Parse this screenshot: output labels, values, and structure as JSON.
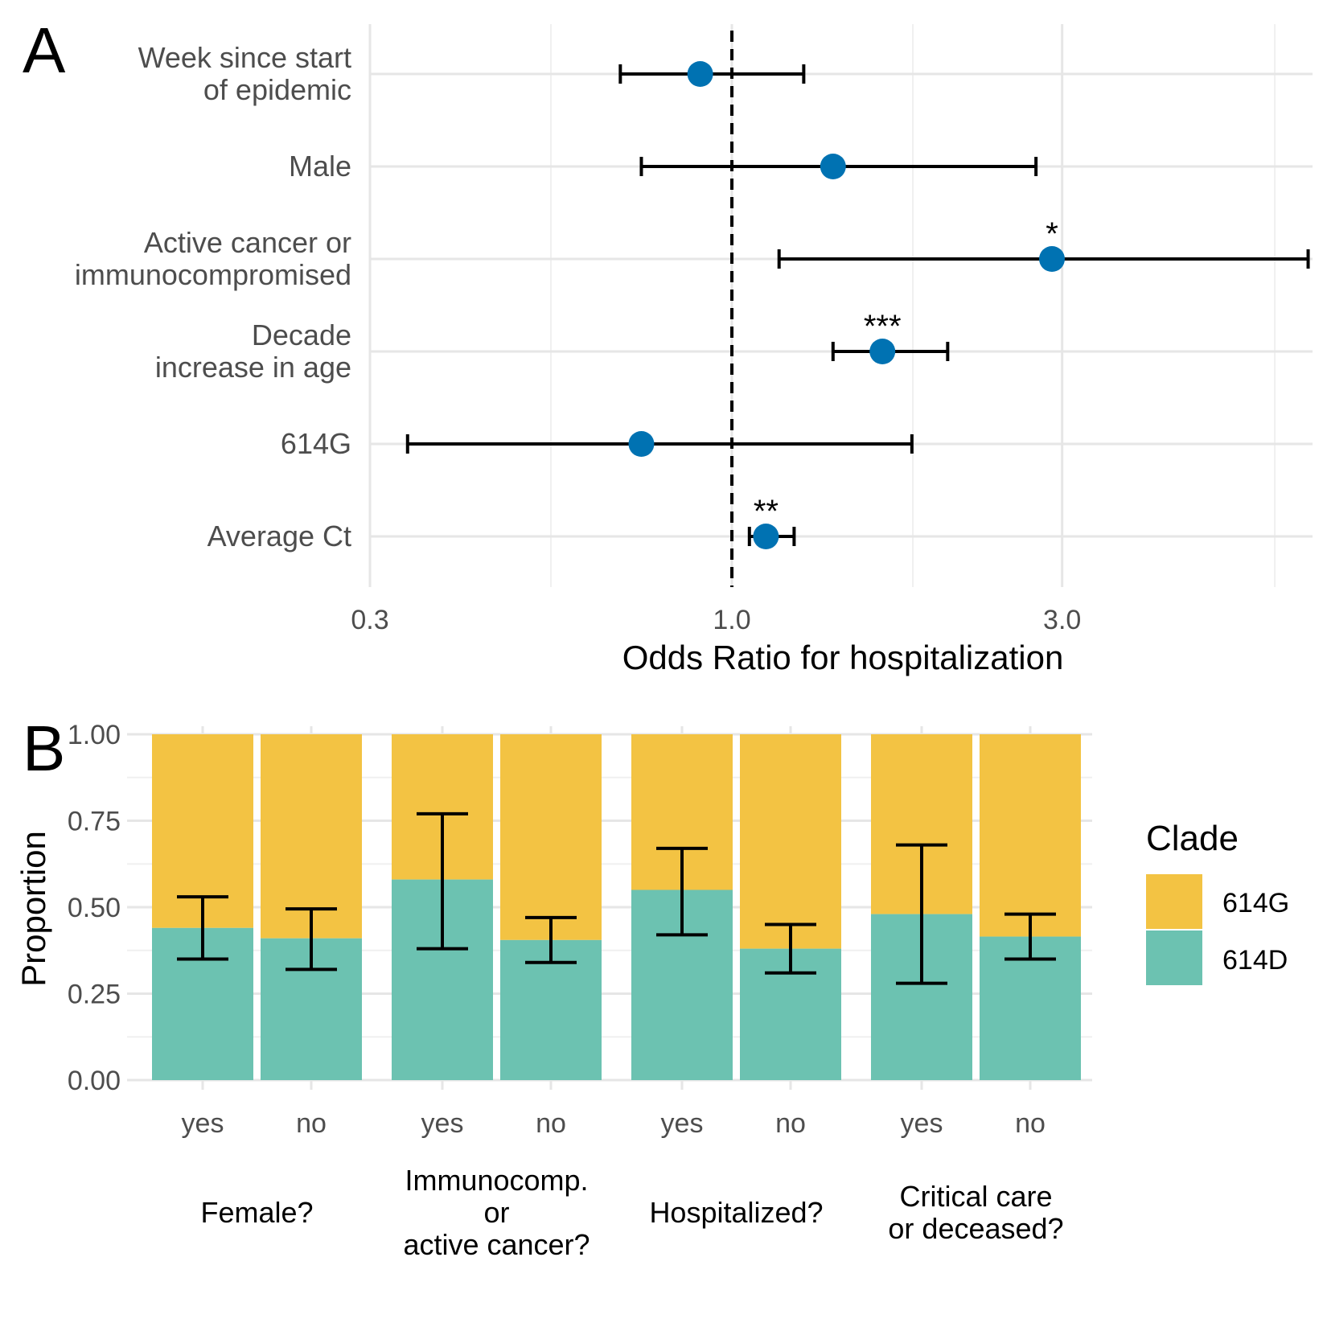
{
  "colors": {
    "point": "#0072b2",
    "g614": "#f3c343",
    "d614": "#6cc2b1",
    "errorbar": "#000000",
    "grid": "#e6e6e6"
  },
  "chart_data": [
    {
      "panel": "A",
      "type": "scatter",
      "subtype": "forest-plot",
      "xscale": "log",
      "xlabel": "Odds Ratio for hospitalization",
      "xticks": [
        "0.3",
        "1.0",
        "3.0"
      ],
      "xlim": [
        0.3,
        6.9
      ],
      "reference_line": 1.0,
      "rows": [
        {
          "label": "Week since start of epidemic",
          "or": 0.9,
          "lo": 0.69,
          "hi": 1.27,
          "sig": ""
        },
        {
          "label": "Male",
          "or": 1.4,
          "lo": 0.74,
          "hi": 2.75,
          "sig": ""
        },
        {
          "label": "Active cancer or immunocompromised",
          "or": 2.9,
          "lo": 1.17,
          "hi": 6.8,
          "sig": "*"
        },
        {
          "label": "Decade increase in age",
          "or": 1.65,
          "lo": 1.4,
          "hi": 2.05,
          "sig": "***"
        },
        {
          "label": "614G",
          "or": 0.74,
          "lo": 0.34,
          "hi": 1.82,
          "sig": ""
        },
        {
          "label": "Average Ct",
          "or": 1.12,
          "lo": 1.06,
          "hi": 1.23,
          "sig": "**"
        }
      ]
    },
    {
      "panel": "B",
      "type": "bar",
      "subtype": "stacked-proportion",
      "ylabel": "Proportion",
      "ylim": [
        0,
        1
      ],
      "yticks": [
        "0.00",
        "0.25",
        "0.50",
        "0.75",
        "1.00"
      ],
      "legend": {
        "title": "Clade",
        "entries": [
          "614G",
          "614D"
        ],
        "position": "right"
      },
      "groups": [
        {
          "label": [
            "Female?"
          ],
          "bars": [
            {
              "label": "yes",
              "d614": 0.44,
              "lo": 0.35,
              "hi": 0.53
            },
            {
              "label": "no",
              "d614": 0.41,
              "lo": 0.32,
              "hi": 0.495
            }
          ]
        },
        {
          "label": [
            "Immunocomp.",
            "or",
            "active cancer?"
          ],
          "bars": [
            {
              "label": "yes",
              "d614": 0.58,
              "lo": 0.38,
              "hi": 0.77
            },
            {
              "label": "no",
              "d614": 0.405,
              "lo": 0.34,
              "hi": 0.47
            }
          ]
        },
        {
          "label": [
            "Hospitalized?"
          ],
          "bars": [
            {
              "label": "yes",
              "d614": 0.55,
              "lo": 0.42,
              "hi": 0.67
            },
            {
              "label": "no",
              "d614": 0.38,
              "lo": 0.31,
              "hi": 0.45
            }
          ]
        },
        {
          "label": [
            "Critical care",
            "or deceased?"
          ],
          "bars": [
            {
              "label": "yes",
              "d614": 0.48,
              "lo": 0.28,
              "hi": 0.68
            },
            {
              "label": "no",
              "d614": 0.415,
              "lo": 0.35,
              "hi": 0.48
            }
          ]
        }
      ]
    }
  ]
}
